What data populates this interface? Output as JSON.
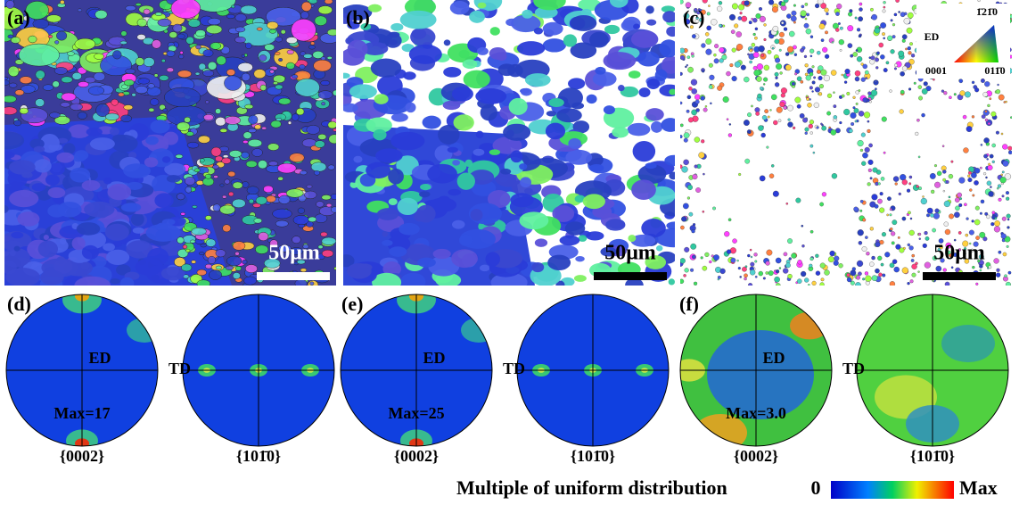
{
  "panels": [
    {
      "label": "(a)",
      "scale_bar": "50μm"
    },
    {
      "label": "(b)",
      "scale_bar": "50μm"
    },
    {
      "label": "(c)",
      "scale_bar": "50μm"
    }
  ],
  "pole_figures": [
    {
      "label": "(d)",
      "ed": "ED",
      "td": "TD",
      "max": "Max=17",
      "pf1": "{0002}",
      "pf2": "{101̄0}"
    },
    {
      "label": "(e)",
      "ed": "ED",
      "td": "TD",
      "max": "Max=25",
      "pf1": "{0002}",
      "pf2": "{101̄0}"
    },
    {
      "label": "(f)",
      "ed": "ED",
      "td": "TD",
      "max": "Max=3.0",
      "pf1": "{0002}",
      "pf2": "{101̄0}"
    }
  ],
  "ipf_key": {
    "title": "ED",
    "top": "1̄21̄0",
    "left": "0001",
    "right": "011̄0"
  },
  "legend": {
    "title": "Multiple of uniform distribution",
    "min": "0",
    "max": "Max"
  }
}
